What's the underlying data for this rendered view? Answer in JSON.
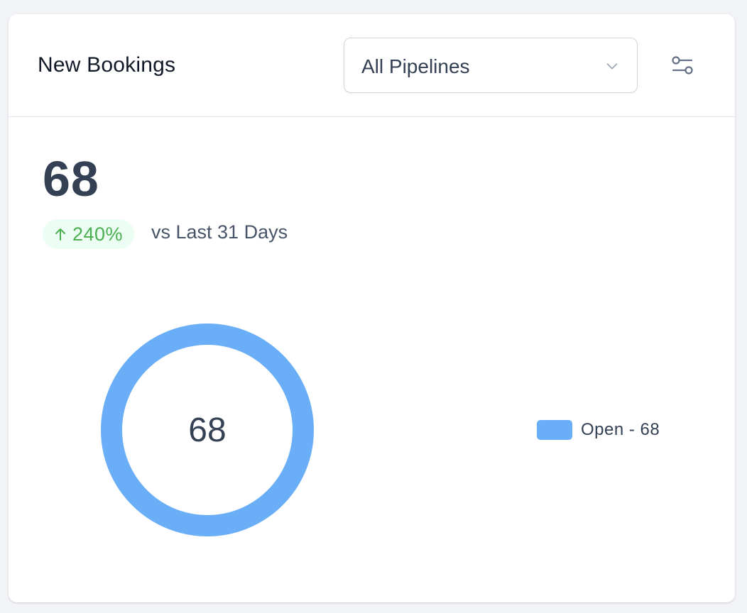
{
  "widget": {
    "title": "New Bookings",
    "pipeline_select": {
      "value": "All Pipelines",
      "icon": "chevron-down-icon"
    },
    "filter_icon": "sliders-icon",
    "total": "68",
    "change": {
      "direction_icon": "arrow-up-icon",
      "value": "240%",
      "color": "#4caf50",
      "bg": "#ecfdf3"
    },
    "comparison_label": "vs Last 31 Days"
  },
  "chart_data": {
    "type": "pie",
    "donut": true,
    "center_label": "68",
    "slices": [
      {
        "name": "Open",
        "value": 68,
        "color": "#6aaef7",
        "legend_label": "Open - 68"
      }
    ],
    "legend_placement": "right"
  }
}
